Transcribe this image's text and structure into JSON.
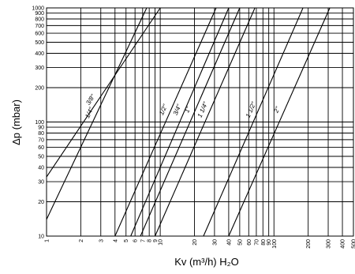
{
  "chart_data": {
    "type": "line",
    "xlabel": "Kv (m³/h) H₂O",
    "ylabel": "Δp (mbar)",
    "x_scale": "log",
    "y_scale": "log",
    "xlim": [
      1,
      500
    ],
    "ylim": [
      10,
      1000
    ],
    "grid": true,
    "x_ticks": [
      1,
      2,
      3,
      4,
      5,
      6,
      7,
      8,
      9,
      10,
      20,
      30,
      40,
      50,
      60,
      70,
      80,
      90,
      100,
      200,
      300,
      400,
      500
    ],
    "x_tick_labels": [
      "1",
      "2",
      "3",
      "4",
      "5",
      "6",
      "7",
      "8",
      "9",
      "10",
      "20",
      "30",
      "40",
      "50",
      "60",
      "70",
      "80",
      "90",
      "100",
      "200",
      "300",
      "400",
      "500"
    ],
    "y_ticks": [
      10,
      20,
      30,
      40,
      50,
      60,
      70,
      80,
      90,
      100,
      200,
      300,
      400,
      500,
      600,
      700,
      800,
      900,
      1000
    ],
    "y_tick_labels": [
      "10",
      "20",
      "30",
      "40",
      "50",
      "60",
      "70",
      "80",
      "90",
      "100",
      "200",
      "300",
      "400",
      "500",
      "600",
      "700",
      "800",
      "900",
      "1000"
    ],
    "series": [
      {
        "name": "1/4\"",
        "x": [
          1.0,
          7.6
        ],
        "y": [
          14,
          1000
        ]
      },
      {
        "name": "3/8\"",
        "x": [
          1.0,
          10.0
        ],
        "y": [
          33,
          1000
        ]
      },
      {
        "name": "1/2\"",
        "x": [
          4.0,
          31.0
        ],
        "y": [
          10,
          1000
        ]
      },
      {
        "name": "3/4\"",
        "x": [
          5.5,
          40.0
        ],
        "y": [
          10,
          1000
        ]
      },
      {
        "name": "1\"",
        "x": [
          6.7,
          50.0
        ],
        "y": [
          10,
          1000
        ]
      },
      {
        "name": "1 1/4\"",
        "x": [
          9.0,
          68.0
        ],
        "y": [
          10,
          1000
        ]
      },
      {
        "name": "1 1/2\"",
        "x": [
          24.0,
          180.0
        ],
        "y": [
          10,
          1000
        ]
      },
      {
        "name": "2\"",
        "x": [
          40.0,
          310.0
        ],
        "y": [
          10,
          1000
        ]
      }
    ]
  }
}
